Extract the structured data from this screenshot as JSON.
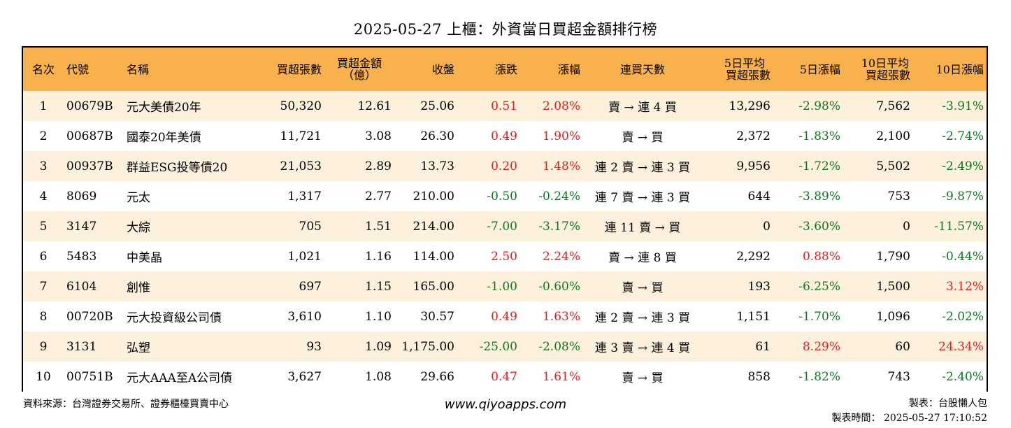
{
  "title": "2025-05-27 上櫃：外資當日買超金額排行榜",
  "headers": {
    "rank": "名次",
    "code": "代號",
    "name": "名稱",
    "buy_shares": "買超張數",
    "buy_amount_1": "買超金額",
    "buy_amount_2": "（億）",
    "close": "收盤",
    "change": "漲跌",
    "change_pct": "漲幅",
    "streak": "連買天數",
    "avg5_1": "5日平均",
    "avg5_2": "買超張數",
    "pct5": "5日漲幅",
    "avg10_1": "10日平均",
    "avg10_2": "買超張數",
    "pct10": "10日漲幅"
  },
  "rows": [
    {
      "rank": "1",
      "code": "00679B",
      "name": "元大美債20年",
      "buy_shares": "50,320",
      "buy_amount": "12.61",
      "close": "25.06",
      "change": "0.51",
      "change_color": "pos",
      "change_pct": "2.08%",
      "change_pct_color": "pos",
      "streak": "賣 → 連 4 買",
      "avg5": "13,296",
      "pct5": "-2.98%",
      "pct5_color": "neg",
      "avg10": "7,562",
      "pct10": "-3.91%",
      "pct10_color": "neg"
    },
    {
      "rank": "2",
      "code": "00687B",
      "name": "國泰20年美債",
      "buy_shares": "11,721",
      "buy_amount": "3.08",
      "close": "26.30",
      "change": "0.49",
      "change_color": "pos",
      "change_pct": "1.90%",
      "change_pct_color": "pos",
      "streak": "賣 → 買",
      "avg5": "2,372",
      "pct5": "-1.83%",
      "pct5_color": "neg",
      "avg10": "2,100",
      "pct10": "-2.74%",
      "pct10_color": "neg"
    },
    {
      "rank": "3",
      "code": "00937B",
      "name": "群益ESG投等債20",
      "buy_shares": "21,053",
      "buy_amount": "2.89",
      "close": "13.73",
      "change": "0.20",
      "change_color": "pos",
      "change_pct": "1.48%",
      "change_pct_color": "pos",
      "streak": "連 2 賣 → 連 3 買",
      "avg5": "9,956",
      "pct5": "-1.72%",
      "pct5_color": "neg",
      "avg10": "5,502",
      "pct10": "-2.49%",
      "pct10_color": "neg"
    },
    {
      "rank": "4",
      "code": "8069",
      "name": "元太",
      "buy_shares": "1,317",
      "buy_amount": "2.77",
      "close": "210.00",
      "change": "-0.50",
      "change_color": "neg",
      "change_pct": "-0.24%",
      "change_pct_color": "neg",
      "streak": "連 7 賣 → 連 3 買",
      "avg5": "644",
      "pct5": "-3.89%",
      "pct5_color": "neg",
      "avg10": "753",
      "pct10": "-9.87%",
      "pct10_color": "neg"
    },
    {
      "rank": "5",
      "code": "3147",
      "name": "大綜",
      "buy_shares": "705",
      "buy_amount": "1.51",
      "close": "214.00",
      "change": "-7.00",
      "change_color": "neg",
      "change_pct": "-3.17%",
      "change_pct_color": "neg",
      "streak": "連 11 賣 → 買",
      "avg5": "0",
      "pct5": "-3.60%",
      "pct5_color": "neg",
      "avg10": "0",
      "pct10": "-11.57%",
      "pct10_color": "neg"
    },
    {
      "rank": "6",
      "code": "5483",
      "name": "中美晶",
      "buy_shares": "1,021",
      "buy_amount": "1.16",
      "close": "114.00",
      "change": "2.50",
      "change_color": "pos",
      "change_pct": "2.24%",
      "change_pct_color": "pos",
      "streak": "賣 → 連 8 買",
      "avg5": "2,292",
      "pct5": "0.88%",
      "pct5_color": "pos",
      "avg10": "1,790",
      "pct10": "-0.44%",
      "pct10_color": "neg"
    },
    {
      "rank": "7",
      "code": "6104",
      "name": "創惟",
      "buy_shares": "697",
      "buy_amount": "1.15",
      "close": "165.00",
      "change": "-1.00",
      "change_color": "neg",
      "change_pct": "-0.60%",
      "change_pct_color": "neg",
      "streak": "賣 → 買",
      "avg5": "193",
      "pct5": "-6.25%",
      "pct5_color": "neg",
      "avg10": "1,500",
      "pct10": "3.12%",
      "pct10_color": "pos"
    },
    {
      "rank": "8",
      "code": "00720B",
      "name": "元大投資級公司債",
      "buy_shares": "3,610",
      "buy_amount": "1.10",
      "close": "30.57",
      "change": "0.49",
      "change_color": "pos",
      "change_pct": "1.63%",
      "change_pct_color": "pos",
      "streak": "連 2 賣 → 連 3 買",
      "avg5": "1,151",
      "pct5": "-1.70%",
      "pct5_color": "neg",
      "avg10": "1,096",
      "pct10": "-2.02%",
      "pct10_color": "neg"
    },
    {
      "rank": "9",
      "code": "3131",
      "name": "弘塑",
      "buy_shares": "93",
      "buy_amount": "1.09",
      "close": "1,175.00",
      "change": "-25.00",
      "change_color": "neg",
      "change_pct": "-2.08%",
      "change_pct_color": "neg",
      "streak": "連 3 賣 → 連 4 買",
      "avg5": "61",
      "pct5": "8.29%",
      "pct5_color": "pos",
      "avg10": "60",
      "pct10": "24.34%",
      "pct10_color": "pos"
    },
    {
      "rank": "10",
      "code": "00751B",
      "name": "元大AAA至A公司債",
      "buy_shares": "3,627",
      "buy_amount": "1.08",
      "close": "29.66",
      "change": "0.47",
      "change_color": "pos",
      "change_pct": "1.61%",
      "change_pct_color": "pos",
      "streak": "賣 → 買",
      "avg5": "858",
      "pct5": "-1.82%",
      "pct5_color": "neg",
      "avg10": "743",
      "pct10": "-2.40%",
      "pct10_color": "neg"
    }
  ],
  "colors": {
    "header_bg": "#f9b14d",
    "row_alt_bg": "#fdf0dc",
    "positive": "#e0201f",
    "negative": "#0b7a1f"
  },
  "footer": {
    "source": "資料來源：台灣證券交易所、證券櫃檯買賣中心",
    "website": "www.qiyoapps.com",
    "author": "製表：台股懶人包",
    "made_time": "製表時間： 2025-05-27 17:10:52"
  }
}
